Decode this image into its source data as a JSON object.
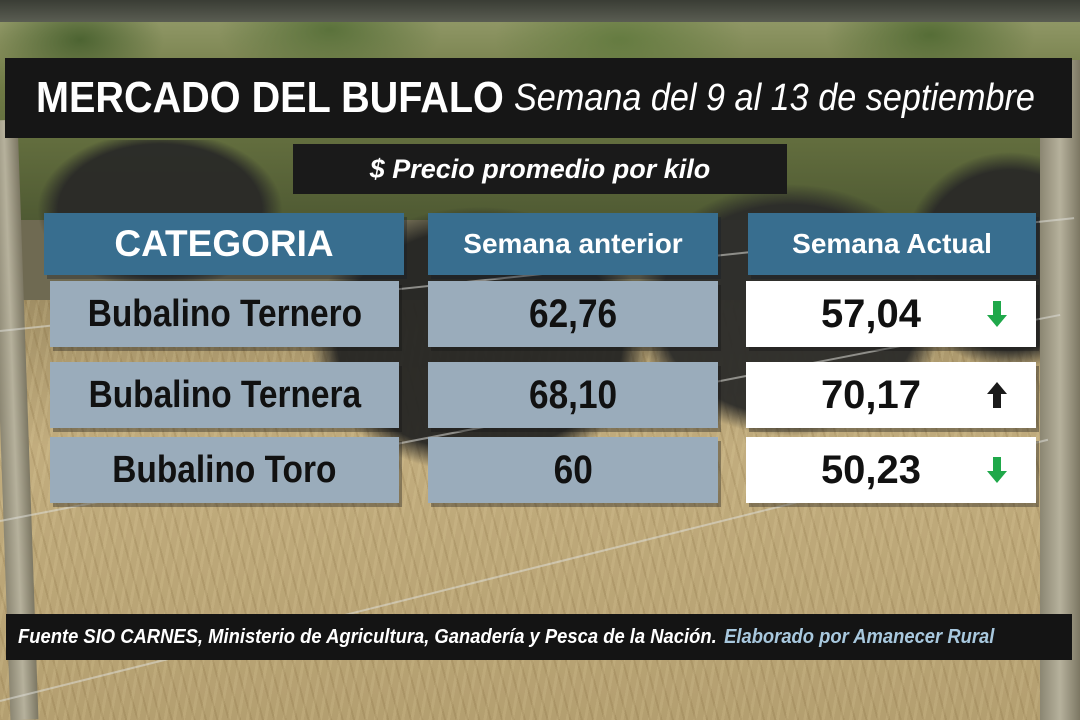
{
  "header": {
    "title": "MERCADO DEL BUFALO",
    "subtitle": "Semana del 9 al 13 de septiembre"
  },
  "price_label": "$ Precio promedio por kilo",
  "table": {
    "columns": [
      "CATEGORIA",
      "Semana anterior",
      "Semana Actual"
    ],
    "rows": [
      {
        "category": "Bubalino Ternero",
        "previous": "62,76",
        "current": "57,04",
        "trend": "down"
      },
      {
        "category": "Bubalino Ternera",
        "previous": "68,10",
        "current": "70,17",
        "trend": "up"
      },
      {
        "category": "Bubalino Toro",
        "previous": "60",
        "current": "50,23",
        "trend": "down"
      }
    ]
  },
  "footer": {
    "source": "Fuente SIO CARNES,  Ministerio de Agricultura, Ganadería y Pesca de la Nación.",
    "credit": "Elaborado por  Amanecer Rural"
  },
  "colors": {
    "header_cell": "#386e8f",
    "row_cell": "#9aacbb",
    "current_cell": "#ffffff",
    "trend_down": "#1fa84a",
    "trend_up": "#1a1a1a",
    "credit_text": "#a8c8de"
  },
  "icons": {
    "down": "arrow-down-icon",
    "up": "arrow-up-icon"
  }
}
